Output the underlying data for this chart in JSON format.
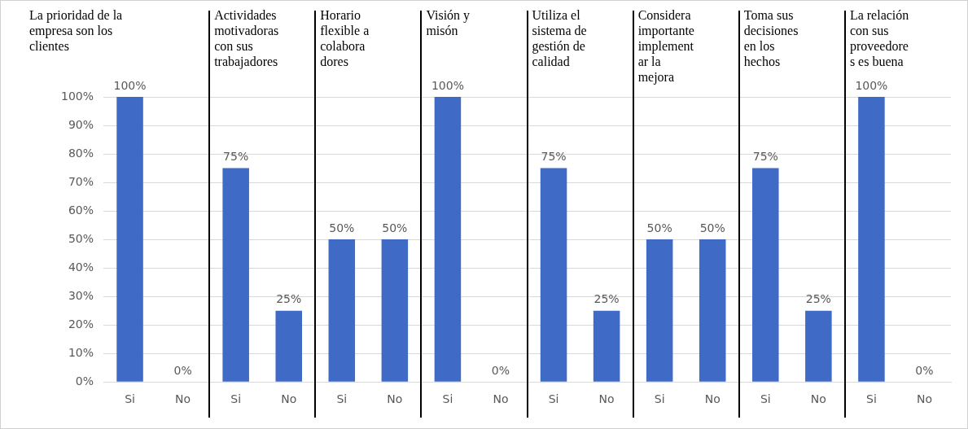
{
  "chart_data": {
    "type": "bar",
    "categories": [
      "Si",
      "No",
      "Si",
      "No",
      "Si",
      "No",
      "Si",
      "No",
      "Si",
      "No",
      "Si",
      "No",
      "Si",
      "No",
      "Si",
      "No"
    ],
    "values": [
      100,
      0,
      75,
      25,
      50,
      50,
      100,
      0,
      75,
      25,
      50,
      50,
      75,
      25,
      100,
      0
    ],
    "color": "#3f6bc6",
    "value_labels": [
      "100%",
      "0%",
      "75%",
      "25%",
      "50%",
      "50%",
      "100%",
      "0%",
      "75%",
      "25%",
      "50%",
      "50%",
      "75%",
      "25%",
      "100%",
      "0%"
    ],
    "ylim": [
      0,
      100
    ],
    "yticks": [
      {
        "value": 0,
        "label": "0%"
      },
      {
        "value": 10,
        "label": "10%"
      },
      {
        "value": 20,
        "label": "20%"
      },
      {
        "value": 30,
        "label": "30%"
      },
      {
        "value": 40,
        "label": "40%"
      },
      {
        "value": 50,
        "label": "50%"
      },
      {
        "value": 60,
        "label": "60%"
      },
      {
        "value": 70,
        "label": "70%"
      },
      {
        "value": 80,
        "label": "80%"
      },
      {
        "value": 90,
        "label": "90%"
      },
      {
        "value": 100,
        "label": "100%"
      }
    ],
    "grid": "y",
    "annotations": [
      "La prioridad de la\nempresa son los\nclientes",
      "Actividades\nmotivadoras\ncon sus\ntrabajadores",
      "Horario\nflexible a\ncolabora\ndores",
      "Visión y\nmisón",
      "Utiliza el\nsistema de\ngestión de\ncalidad",
      "Considera\nimportante\nimplement\nar la\nmejora",
      "Toma sus\ndecisiones\nen los\nhechos",
      "La relación\ncon sus\nproveedore\ns es buena"
    ]
  }
}
